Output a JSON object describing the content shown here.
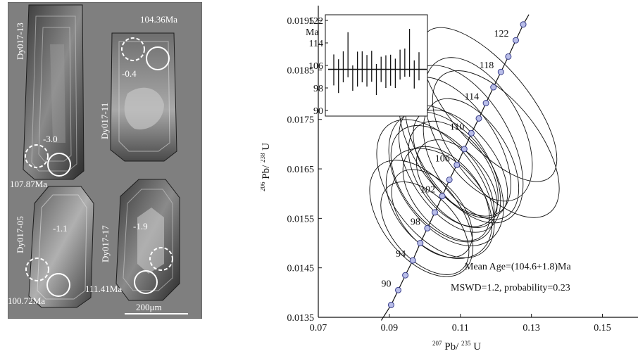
{
  "micrograph_panel": {
    "grains": [
      {
        "id": "Dy017-13",
        "age": "107.87Ma",
        "offset": "-3.0"
      },
      {
        "id": "Dy017-11",
        "age": "104.36Ma",
        "offset": "-0.4"
      },
      {
        "id": "Dy017-05",
        "age": "100.72Ma",
        "offset": "-1.1"
      },
      {
        "id": "Dy017-17",
        "age": "111.41Ma",
        "offset": "-1.9"
      }
    ],
    "scale_bar_label": "200μm",
    "colors": {
      "background": "#7f7f7f",
      "frame": "#555555"
    }
  },
  "chart_data": {
    "type": "scatter",
    "subtype": "U-Pb concordia diagram",
    "xlabel": {
      "mass": "207",
      "formula": "Pb/",
      "mass2": "235",
      "tail": "U"
    },
    "ylabel": {
      "mass": "206",
      "formula": "Pb/",
      "mass2": "238",
      "tail": "U"
    },
    "xlim": [
      0.07,
      0.16
    ],
    "ylim": [
      0.0135,
      0.0198
    ],
    "x_ticks": [
      0.07,
      0.09,
      0.11,
      0.13,
      0.15
    ],
    "x_tick_labels": [
      "0.07",
      "0.09",
      "0.11",
      "0.13",
      "0.15"
    ],
    "y_ticks": [
      0.0135,
      0.0145,
      0.0155,
      0.0165,
      0.0175,
      0.0185,
      0.0195
    ],
    "y_tick_labels": [
      "0.0135",
      "0.0145",
      "0.0155",
      "0.0165",
      "0.0175",
      "0.0185",
      "0.0195"
    ],
    "concordia_points": [
      {
        "age": 88,
        "x": 0.0905,
        "y": 0.01375
      },
      {
        "age": 90,
        "x": 0.0925,
        "y": 0.01405
      },
      {
        "age": 92,
        "x": 0.0945,
        "y": 0.01435
      },
      {
        "age": 94,
        "x": 0.0966,
        "y": 0.01465
      },
      {
        "age": 96,
        "x": 0.0987,
        "y": 0.015
      },
      {
        "age": 98,
        "x": 0.1007,
        "y": 0.0153
      },
      {
        "age": 100,
        "x": 0.1028,
        "y": 0.01562
      },
      {
        "age": 102,
        "x": 0.1049,
        "y": 0.01595
      },
      {
        "age": 104,
        "x": 0.1069,
        "y": 0.01628
      },
      {
        "age": 106,
        "x": 0.109,
        "y": 0.01658
      },
      {
        "age": 108,
        "x": 0.1111,
        "y": 0.0169
      },
      {
        "age": 110,
        "x": 0.1131,
        "y": 0.01722
      },
      {
        "age": 112,
        "x": 0.1152,
        "y": 0.01752
      },
      {
        "age": 114,
        "x": 0.1172,
        "y": 0.01783
      },
      {
        "age": 116,
        "x": 0.1193,
        "y": 0.01815
      },
      {
        "age": 118,
        "x": 0.1214,
        "y": 0.01846
      },
      {
        "age": 120,
        "x": 0.1235,
        "y": 0.01877
      },
      {
        "age": 122,
        "x": 0.1256,
        "y": 0.0191
      },
      {
        "age": 124,
        "x": 0.1277,
        "y": 0.01942
      }
    ],
    "concordia_labels": [
      {
        "text": "90",
        "age": 90,
        "side": "left"
      },
      {
        "text": "94",
        "age": 94,
        "side": "left"
      },
      {
        "text": "98",
        "age": 98,
        "side": "left"
      },
      {
        "text": "102",
        "age": 102,
        "side": "left"
      },
      {
        "text": "106",
        "age": 106,
        "side": "left"
      },
      {
        "text": "110",
        "age": 110,
        "side": "left"
      },
      {
        "text": "114",
        "age": 114,
        "side": "left"
      },
      {
        "text": "118",
        "age": 118,
        "side": "left"
      },
      {
        "text": "122",
        "age": 122,
        "side": "left"
      }
    ],
    "error_ellipses": [
      {
        "x": 0.105,
        "y": 0.0162,
        "rx": 0.011,
        "ry": 0.00085,
        "angle": 38
      },
      {
        "x": 0.106,
        "y": 0.016,
        "rx": 0.009,
        "ry": 0.0007,
        "angle": 40
      },
      {
        "x": 0.108,
        "y": 0.0164,
        "rx": 0.01,
        "ry": 0.00075,
        "angle": 35
      },
      {
        "x": 0.104,
        "y": 0.0158,
        "rx": 0.012,
        "ry": 0.0008,
        "angle": 42
      },
      {
        "x": 0.11,
        "y": 0.0166,
        "rx": 0.0095,
        "ry": 0.0008,
        "angle": 38
      },
      {
        "x": 0.102,
        "y": 0.0156,
        "rx": 0.0085,
        "ry": 0.00065,
        "angle": 40
      },
      {
        "x": 0.107,
        "y": 0.0165,
        "rx": 0.011,
        "ry": 0.0009,
        "angle": 33
      },
      {
        "x": 0.111,
        "y": 0.017,
        "rx": 0.013,
        "ry": 0.0011,
        "angle": 30
      },
      {
        "x": 0.115,
        "y": 0.0173,
        "rx": 0.012,
        "ry": 0.001,
        "angle": 30
      },
      {
        "x": 0.1,
        "y": 0.0153,
        "rx": 0.009,
        "ry": 0.0007,
        "angle": 42
      },
      {
        "x": 0.099,
        "y": 0.0155,
        "rx": 0.011,
        "ry": 0.00085,
        "angle": 38
      },
      {
        "x": 0.109,
        "y": 0.0162,
        "rx": 0.0085,
        "ry": 0.00065,
        "angle": 40
      },
      {
        "x": 0.106,
        "y": 0.0163,
        "rx": 0.013,
        "ry": 0.00095,
        "angle": 35
      },
      {
        "x": 0.118,
        "y": 0.0178,
        "rx": 0.011,
        "ry": 0.0012,
        "angle": 40
      },
      {
        "x": 0.103,
        "y": 0.0161,
        "rx": 0.0125,
        "ry": 0.001,
        "angle": 36
      },
      {
        "x": 0.113,
        "y": 0.0167,
        "rx": 0.0105,
        "ry": 0.00085,
        "angle": 32
      },
      {
        "x": 0.12,
        "y": 0.017,
        "rx": 0.012,
        "ry": 0.0011,
        "angle": 38
      },
      {
        "x": 0.1085,
        "y": 0.01695,
        "rx": 0.0115,
        "ry": 0.001,
        "angle": 34
      }
    ],
    "inset": {
      "ylabel": "Ma",
      "y_ticks": [
        90,
        98,
        106,
        114,
        122
      ],
      "y_tick_labels": [
        "90",
        "98",
        "106",
        "114",
        "122"
      ],
      "ylim": [
        88,
        124
      ],
      "mean_age": 104.6,
      "bars": [
        {
          "age": 104.4,
          "err": 5.5
        },
        {
          "age": 102.2,
          "err": 6.0
        },
        {
          "age": 105.5,
          "err": 5.5
        },
        {
          "age": 109.8,
          "err": 8.0
        },
        {
          "age": 101.5,
          "err": 4.5
        },
        {
          "age": 104.7,
          "err": 6.2
        },
        {
          "age": 105.5,
          "err": 5.5
        },
        {
          "age": 104.1,
          "err": 5.6
        },
        {
          "age": 105.7,
          "err": 5.5
        },
        {
          "age": 101.0,
          "err": 5.5
        },
        {
          "age": 104.6,
          "err": 4.5
        },
        {
          "age": 103.8,
          "err": 5.8
        },
        {
          "age": 104.3,
          "err": 5.5
        },
        {
          "age": 103.2,
          "err": 5.2
        },
        {
          "age": 106.3,
          "err": 5.3
        },
        {
          "age": 107.0,
          "err": 5.0
        },
        {
          "age": 110.5,
          "err": 8.5
        },
        {
          "age": 102.8,
          "err": 5.0
        },
        {
          "age": 105.7,
          "err": 5.0
        }
      ]
    },
    "annotations": [
      "Mean Age=(104.6+1.8)Ma",
      "MSWD=1.2, probability=0.23"
    ],
    "colors": {
      "concordia_point_fill": "#b8bde8",
      "concordia_point_stroke": "#3a3f8c",
      "line": "#111111"
    }
  }
}
